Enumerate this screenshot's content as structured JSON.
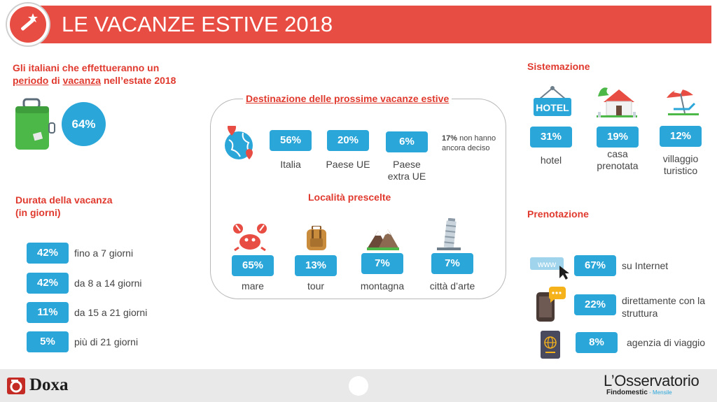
{
  "header": {
    "title": "LE VACANZE ESTIVE 2018",
    "icon": "magic-wand-icon"
  },
  "italians": {
    "title_line1": "Gli italiani che effettueranno un",
    "title_line2a": "periodo",
    "title_line2b": " di ",
    "title_line2c": "vacanza",
    "title_line2d": " nell’estate 2018",
    "value": "64%",
    "icon": "suitcase-icon"
  },
  "duration": {
    "title_line1": "Durata della vacanza",
    "title_line2": "(in giorni)",
    "items": [
      {
        "value": "42%",
        "label": "fino a 7 giorni"
      },
      {
        "value": "42%",
        "label": "da 8 a 14 giorni"
      },
      {
        "value": "11%",
        "label": "da 15 a 21 giorni"
      },
      {
        "value": "5%",
        "label": "più di 21 giorni"
      }
    ]
  },
  "destination": {
    "title": "Destinazione delle prossime vacanze estive",
    "icon": "globe-pin-icon",
    "items": [
      {
        "value": "56%",
        "label": "Italia"
      },
      {
        "value": "20%",
        "label": "Paese UE"
      },
      {
        "value": "6%",
        "label_line1": "Paese",
        "label_line2": "extra UE"
      }
    ],
    "undecided_value": "17%",
    "undecided_line1": " non hanno",
    "undecided_line2": "ancora deciso"
  },
  "places": {
    "title": "Località prescelte",
    "items": [
      {
        "value": "65%",
        "label": "mare",
        "icon": "crab-icon"
      },
      {
        "value": "13%",
        "label": "tour",
        "icon": "backpack-icon"
      },
      {
        "value": "7%",
        "label": "montagna",
        "icon": "mountain-icon"
      },
      {
        "value": "7%",
        "label": "città d’arte",
        "icon": "pisa-tower-icon"
      }
    ]
  },
  "accommodation": {
    "title": "Sistemazione",
    "hotel_sign": "HOTEL",
    "items": [
      {
        "value": "31%",
        "label": "hotel",
        "icon": "hotel-sign-icon"
      },
      {
        "value": "19%",
        "label_line1": "casa",
        "label_line2": "prenotata",
        "icon": "house-icon"
      },
      {
        "value": "12%",
        "label_line1": "villaggio",
        "label_line2": "turistico",
        "icon": "beach-umbrella-icon"
      }
    ]
  },
  "booking": {
    "title": "Prenotazione",
    "www": "www",
    "items": [
      {
        "value": "67%",
        "label": "su Internet",
        "icon": "www-cursor-icon"
      },
      {
        "value": "22%",
        "label_line1": "direttamente con la",
        "label_line2": "struttura",
        "icon": "phone-chat-icon"
      },
      {
        "value": "8%",
        "label": "agenzia di viaggio",
        "icon": "passport-icon"
      }
    ]
  },
  "footer": {
    "brand_left": "Doxa",
    "brand_right": "L’Osservatorio",
    "brand_right_sub": "Findomestic",
    "brand_right_tag": " - Mensile"
  },
  "colors": {
    "red": "#e84d43",
    "blue": "#2aa6d9",
    "title_red": "#e03a2f"
  }
}
